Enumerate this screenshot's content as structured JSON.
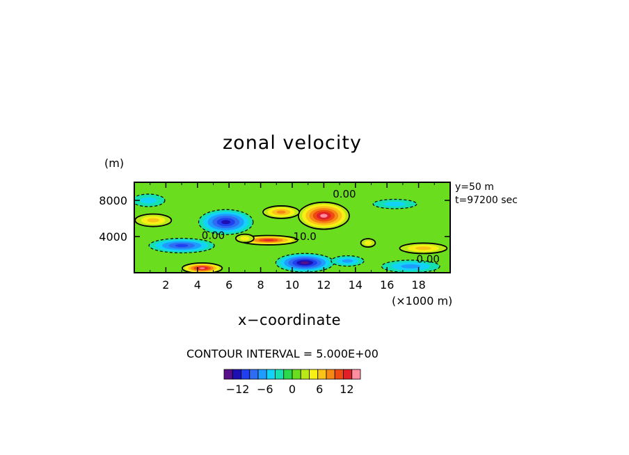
{
  "chart_data": {
    "type": "heatmap",
    "title": "zonal velocity",
    "xlabel": "x−coordinate",
    "x_unit": "(×1000 m)",
    "y_unit": "(m)",
    "xlim": [
      0,
      20
    ],
    "ylim": [
      0,
      10000
    ],
    "x_ticks": [
      2,
      4,
      6,
      8,
      10,
      12,
      14,
      16,
      18
    ],
    "x_tick_labels": [
      "2",
      "4",
      "6",
      "8",
      "10",
      "12",
      "14",
      "16",
      "18"
    ],
    "y_ticks": [
      4000,
      8000
    ],
    "y_tick_labels": [
      "4000",
      "8000"
    ],
    "side_text": [
      "y=50 m",
      "t=97200 sec"
    ],
    "contour_interval_text": "CONTOUR INTERVAL = 5.000E+00",
    "contour_labels": [
      {
        "x": 13.3,
        "y": 8700,
        "text": "0.00"
      },
      {
        "x": 5.0,
        "y": 4100,
        "text": "0.00"
      },
      {
        "x": 10.8,
        "y": 4000,
        "text": "10.0"
      },
      {
        "x": 18.6,
        "y": 1500,
        "text": "0.00"
      }
    ],
    "colorbar": {
      "min": -15,
      "max": 15,
      "tick_values": [
        -12,
        -6,
        0,
        6,
        12
      ],
      "tick_labels": [
        "−12",
        "−6",
        "0",
        "6",
        "12"
      ]
    },
    "features": [
      {
        "x": 5.8,
        "y": 5600,
        "sx": 1.5,
        "sy": 1200,
        "value": -12
      },
      {
        "x": 3.0,
        "y": 3000,
        "sx": 1.8,
        "sy": 700,
        "value": -11
      },
      {
        "x": 10.8,
        "y": 1100,
        "sx": 1.6,
        "sy": 900,
        "value": -15
      },
      {
        "x": 13.5,
        "y": 1300,
        "sx": 0.9,
        "sy": 500,
        "value": -7
      },
      {
        "x": 17.5,
        "y": 700,
        "sx": 1.6,
        "sy": 600,
        "value": -6
      },
      {
        "x": 0.9,
        "y": 8000,
        "sx": 0.9,
        "sy": 600,
        "value": -5
      },
      {
        "x": 16.5,
        "y": 7600,
        "sx": 1.2,
        "sy": 450,
        "value": -5
      },
      {
        "x": 12.0,
        "y": 6300,
        "sx": 1.4,
        "sy": 1300,
        "value": 15
      },
      {
        "x": 9.3,
        "y": 6700,
        "sx": 1.0,
        "sy": 600,
        "value": 8
      },
      {
        "x": 8.5,
        "y": 3600,
        "sx": 1.6,
        "sy": 450,
        "value": 12
      },
      {
        "x": 4.3,
        "y": 500,
        "sx": 1.1,
        "sy": 500,
        "value": 14
      },
      {
        "x": 1.2,
        "y": 5800,
        "sx": 1.0,
        "sy": 600,
        "value": 7
      },
      {
        "x": 18.3,
        "y": 2700,
        "sx": 1.3,
        "sy": 500,
        "value": 6
      },
      {
        "x": 7.0,
        "y": 3800,
        "sx": 0.5,
        "sy": 400,
        "value": 5
      },
      {
        "x": 14.8,
        "y": 3300,
        "sx": 0.4,
        "sy": 400,
        "value": 5
      }
    ]
  }
}
